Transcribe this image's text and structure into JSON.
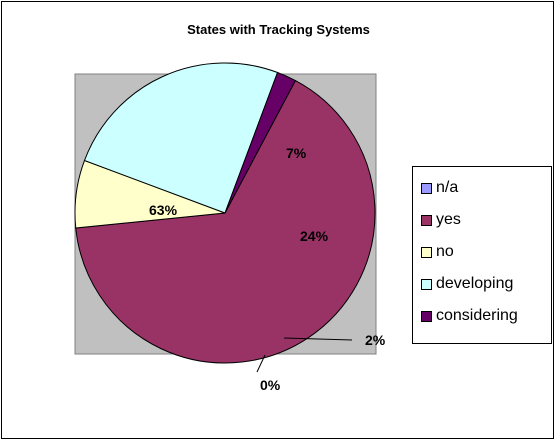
{
  "chart_data": {
    "type": "pie",
    "title": "States with Tracking Systems",
    "categories": [
      "n/a",
      "yes",
      "no",
      "developing",
      "considering"
    ],
    "values": [
      0,
      63,
      7,
      24,
      2
    ],
    "data_labels": [
      "0%",
      "63%",
      "7%",
      "24%",
      "2%"
    ],
    "colors": [
      "#9999ff",
      "#993366",
      "#ffffcc",
      "#ccffff",
      "#660066"
    ],
    "plot_background": "#c0c0c0",
    "legend_placement": "right",
    "grid": false
  }
}
